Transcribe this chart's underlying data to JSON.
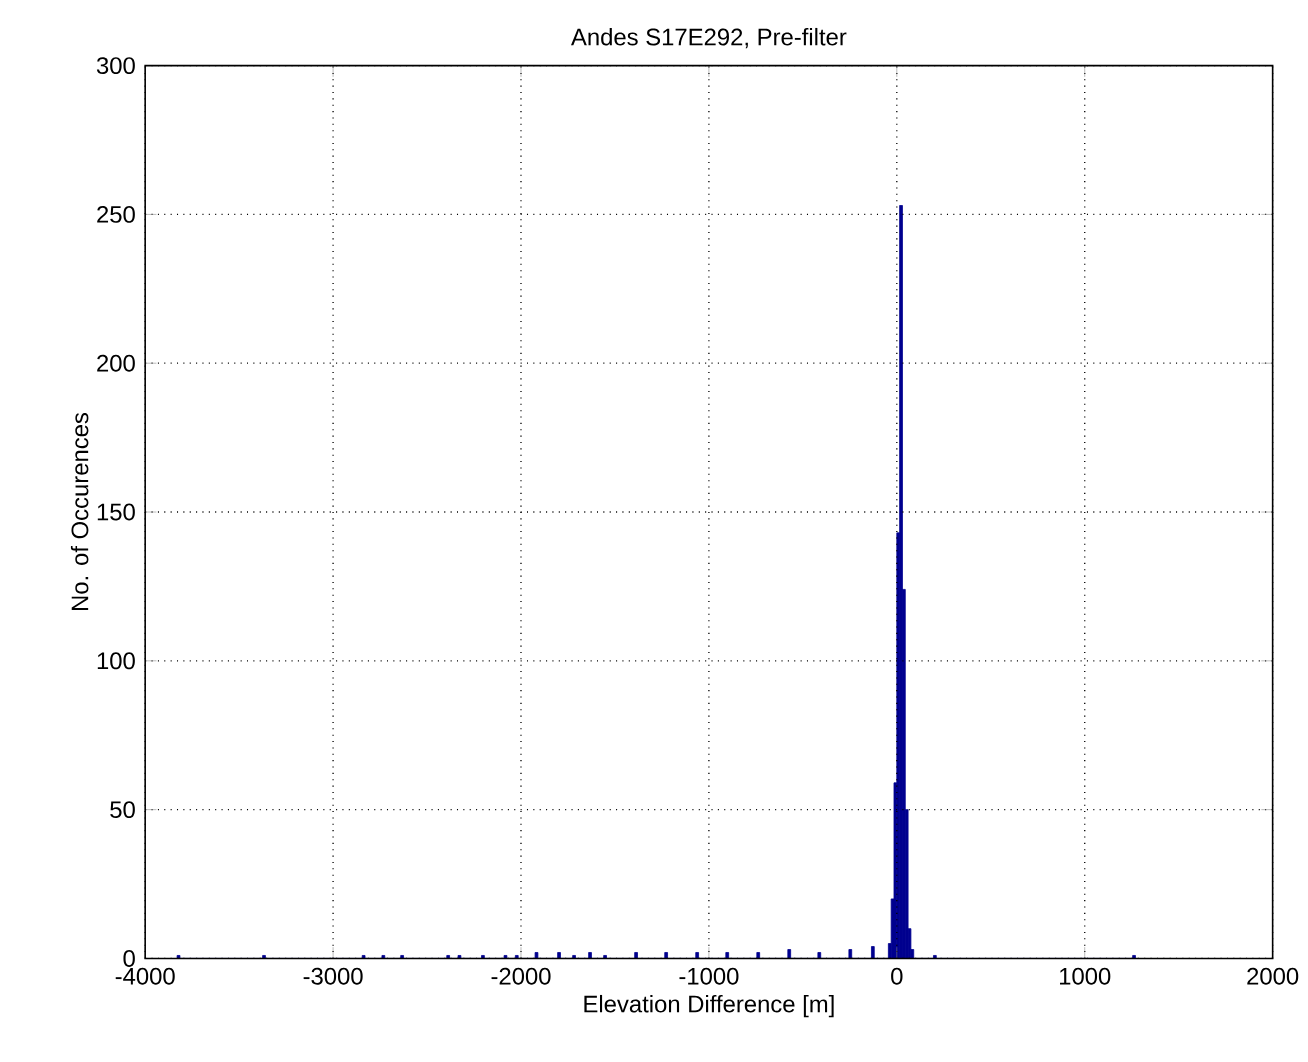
{
  "chart_data": {
    "type": "histogram",
    "title": "Andes S17E292, Pre-filter",
    "xlabel": "Elevation Difference [m]",
    "ylabel": "No. of Occurences",
    "bins": [
      -3830,
      -3815,
      -3375,
      -3360,
      -2845,
      -2830,
      -2740,
      -2725,
      -2640,
      -2625,
      -2395,
      -2380,
      -2335,
      -2320,
      -2210,
      -2195,
      -2090,
      -2075,
      -2030,
      -2015,
      -1925,
      -1910,
      -1805,
      -1790,
      -1725,
      -1710,
      -1640,
      -1625,
      -1560,
      -1545,
      -1395,
      -1380,
      -1235,
      -1220,
      -1070,
      -1055,
      -910,
      -895,
      -745,
      -730,
      -580,
      -565,
      -420,
      -405,
      -255,
      -240,
      -135,
      -120,
      -45,
      -30,
      -15,
      0,
      15,
      30,
      45,
      60,
      75,
      90,
      195,
      210,
      1255,
      1270
    ],
    "values": [
      1,
      0,
      1,
      0,
      1,
      0,
      1,
      0,
      1,
      0,
      1,
      0,
      1,
      0,
      1,
      0,
      1,
      0,
      1,
      0,
      2,
      0,
      2,
      0,
      1,
      0,
      2,
      0,
      1,
      0,
      2,
      0,
      2,
      0,
      2,
      0,
      2,
      0,
      2,
      0,
      3,
      0,
      2,
      0,
      3,
      0,
      4,
      0,
      5,
      20,
      59,
      143,
      253,
      124,
      50,
      10,
      3,
      0,
      1,
      0,
      1
    ],
    "color": "#00008f",
    "xlim": [
      -4000,
      2000
    ],
    "ylim": [
      0,
      300
    ],
    "xticks": [
      -4000,
      -3000,
      -2000,
      -1000,
      0,
      1000,
      2000
    ],
    "yticks": [
      0,
      50,
      100,
      150,
      200,
      250,
      300
    ],
    "grid": true
  }
}
